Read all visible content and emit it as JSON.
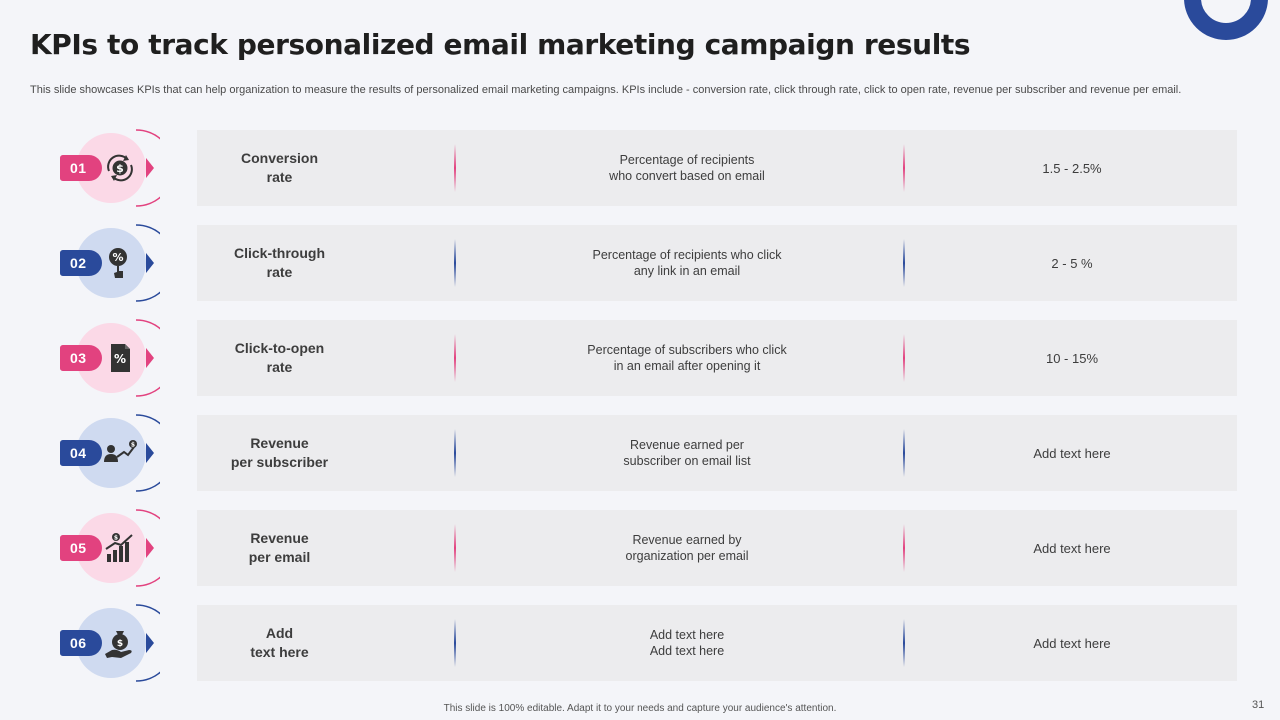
{
  "title": "KPIs to track personalized email marketing campaign results",
  "subtitle": "This slide showcases KPIs that can help organization to measure the results of personalized email marketing campaigns. KPIs include - conversion rate, click through rate, click to open rate,  revenue per subscriber and revenue per email.",
  "colors": {
    "pink": "#e2427f",
    "pink_light": "#fbd9e7",
    "blue": "#2a4a9b",
    "blue_light": "#cfdaf0",
    "card": "#ececee",
    "background": "#f4f5f9"
  },
  "kpis": [
    {
      "number": "01",
      "name": "Conversion\nrate",
      "description": "Percentage of recipients\nwho convert  based on email",
      "value": "1.5 - 2.5%",
      "theme": "pink",
      "icon": "dollar-cycle-icon"
    },
    {
      "number": "02",
      "name": "Click-through\nrate",
      "description": "Percentage of recipients who click\nany link in an email",
      "value": "2 - 5 %",
      "theme": "blue",
      "icon": "percent-click-icon"
    },
    {
      "number": "03",
      "name": "Click-to-open\nrate",
      "description": "Percentage of subscribers who click\nin an email after opening it",
      "value": "10 - 15%",
      "theme": "pink",
      "icon": "percent-document-icon"
    },
    {
      "number": "04",
      "name": "Revenue\nper subscriber",
      "description": "Revenue  earned per\nsubscriber on email list",
      "value": "Add text here",
      "theme": "blue",
      "icon": "subscriber-revenue-icon"
    },
    {
      "number": "05",
      "name": "Revenue\nper email",
      "description": "Revenue  earned by\norganization  per email",
      "value": "Add text here",
      "theme": "pink",
      "icon": "revenue-chart-icon"
    },
    {
      "number": "06",
      "name": "Add\ntext here",
      "description": "Add text here\nAdd text here",
      "value": "Add text here",
      "theme": "blue",
      "icon": "money-hand-icon"
    }
  ],
  "footer_note": "This slide is 100% editable.  Adapt it to your needs and capture your audience's attention.",
  "page_number": "31"
}
